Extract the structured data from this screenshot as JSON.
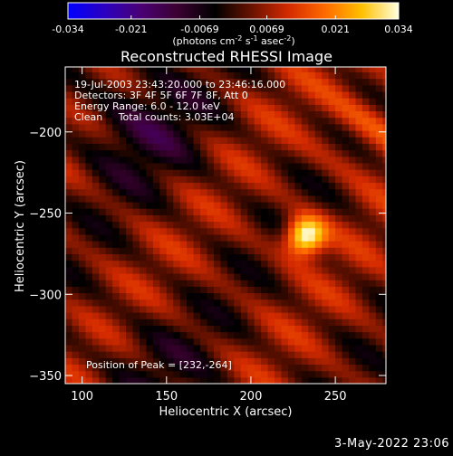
{
  "chart_data": {
    "type": "heatmap",
    "title": "Reconstructed RHESSI Image",
    "xlabel": "Heliocentric X (arcsec)",
    "ylabel": "Heliocentric Y (arcsec)",
    "xlim": [
      90,
      280
    ],
    "ylim": [
      -355,
      -160
    ],
    "xticks": [
      100,
      150,
      200,
      250
    ],
    "yticks": [
      -200,
      -250,
      -300,
      -350
    ],
    "colorbar": {
      "min": -0.034,
      "max": 0.034,
      "ticks": [
        "-0.034",
        "-0.021",
        "-0.0069",
        "0.0069",
        "0.021",
        "0.034"
      ],
      "unit_label": "(photons cm",
      "unit_sup1": "-2",
      "unit_mid": " s",
      "unit_sup2": "-1",
      "unit_mid2": " asec",
      "unit_sup3": "-2",
      "unit_end": ")",
      "colors": [
        "#0000ff",
        "#2b00c0",
        "#4a0072",
        "#3a0030",
        "#000000",
        "#6a1200",
        "#d42a00",
        "#ff6a00",
        "#ffc000",
        "#ffffe0"
      ]
    },
    "annotations": [
      "19-Jul-2003 23:43:20.000 to 23:46:16.000",
      "Detectors: 3F 4F 5F 6F 7F 8F, Att 0",
      "Energy Range: 6.0 - 12.0 keV",
      "Clean     Total counts: 3.03E+04"
    ],
    "peak_text": "Position of Peak = [232,-264]",
    "peak": {
      "x": 232,
      "y": -264,
      "value": 0.034
    }
  },
  "footer_stamp": "3-May-2022 23:06"
}
